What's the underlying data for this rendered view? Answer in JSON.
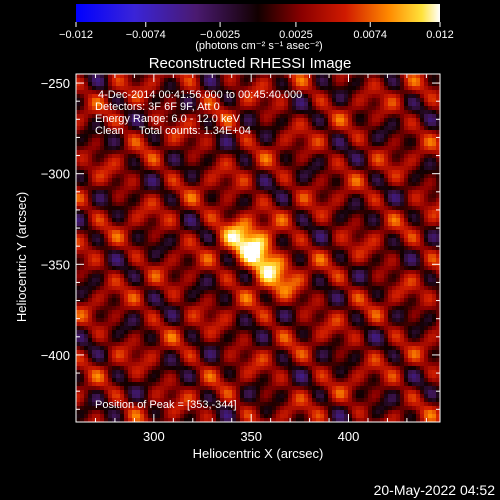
{
  "chart_data": {
    "type": "heatmap",
    "title": "Reconstructed RHESSI Image",
    "xlabel": "Heliocentric X (arcsec)",
    "ylabel": "Heliocentric Y (arcsec)",
    "xlim": [
      260,
      447
    ],
    "ylim": [
      -437,
      -245
    ],
    "x_ticks": [
      300,
      350,
      400
    ],
    "y_ticks": [
      -250,
      -300,
      -350,
      -400
    ],
    "colorbar": {
      "range": [
        -0.012,
        0.012
      ],
      "tick_values": [
        -0.012,
        -0.0074,
        -0.0025,
        0.0025,
        0.0074,
        0.012
      ],
      "tick_labels": [
        "−0.012",
        "−0.0074",
        "−0.0025",
        "0.0025",
        "0.0074",
        "0.012"
      ],
      "units": "(photons cm⁻² s⁻¹ asec⁻²)"
    },
    "info_lines": [
      "4-Dec-2014 00:41:56.000 to 00:45:40.000",
      "Detectors: 3F 6F 9F, Att 0",
      "Energy Range: 6.0 - 12.0 keV",
      "Clean     Total counts: 1.34E+04"
    ],
    "peak_label": "Position of Peak = [353,-344]",
    "peak": {
      "x": 353,
      "y": -344
    }
  },
  "footer": {
    "timestamp": "20-May-2022 04:52"
  }
}
